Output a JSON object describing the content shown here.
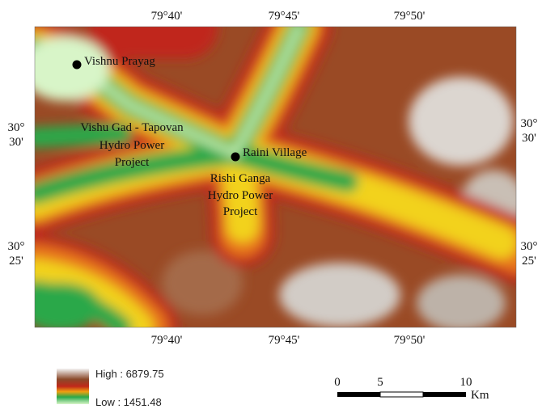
{
  "map": {
    "graticule": {
      "top": [
        "79°40'",
        "79°45'",
        "79°50'"
      ],
      "bottom": [
        "79°40'",
        "79°45'",
        "79°50'"
      ],
      "left": [
        [
          "30°",
          "30'"
        ],
        [
          "30°",
          "25'"
        ]
      ],
      "right": [
        [
          "30°",
          "30'"
        ],
        [
          "30°",
          "25'"
        ]
      ]
    },
    "places": [
      {
        "lines": [
          "Vishnu Prayag"
        ]
      },
      {
        "lines": [
          "Vishu Gad - Tapovan",
          "Hydro Power",
          "Project"
        ]
      },
      {
        "lines": [
          "Raini Village"
        ]
      },
      {
        "lines": [
          "Rishi Ganga",
          "Hydro Power",
          "Project"
        ]
      }
    ],
    "legend": {
      "high": "High : 6879.75",
      "low": "Low : 1451.48"
    },
    "scale_bar": {
      "ticks": [
        "0",
        "5",
        "10"
      ],
      "unit": "Km"
    }
  }
}
